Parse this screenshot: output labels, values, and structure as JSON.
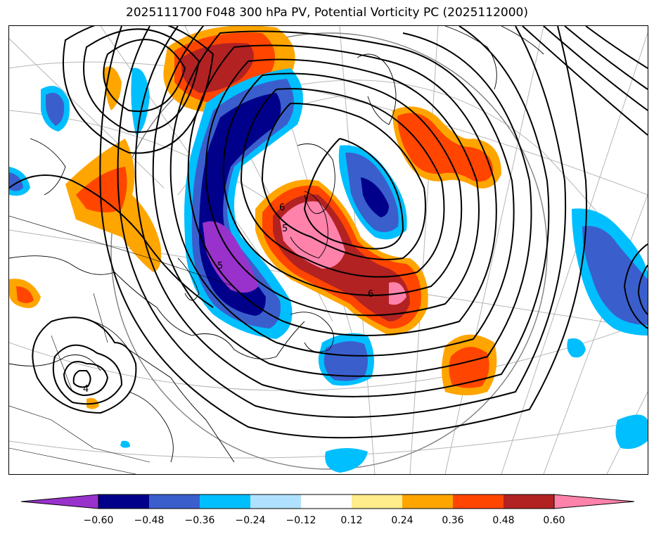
{
  "title": "2025111700 F048 300 hPa PV, Potential Vorticity PC (2025112000)",
  "colorbar": {
    "colors": [
      "#9932cc",
      "#00008b",
      "#3a5fcd",
      "#00bfff",
      "#b0e2ff",
      "#ffffff",
      "#ffec8b",
      "#ffa500",
      "#ff4500",
      "#b22222",
      "#ff82ab"
    ],
    "ticks": [
      "−0.60",
      "−0.48",
      "−0.36",
      "−0.24",
      "−0.12",
      "0.12",
      "0.24",
      "0.36",
      "0.48",
      "0.60"
    ]
  },
  "contour_labels": [
    "6",
    "5",
    "5",
    "6",
    "4"
  ]
}
